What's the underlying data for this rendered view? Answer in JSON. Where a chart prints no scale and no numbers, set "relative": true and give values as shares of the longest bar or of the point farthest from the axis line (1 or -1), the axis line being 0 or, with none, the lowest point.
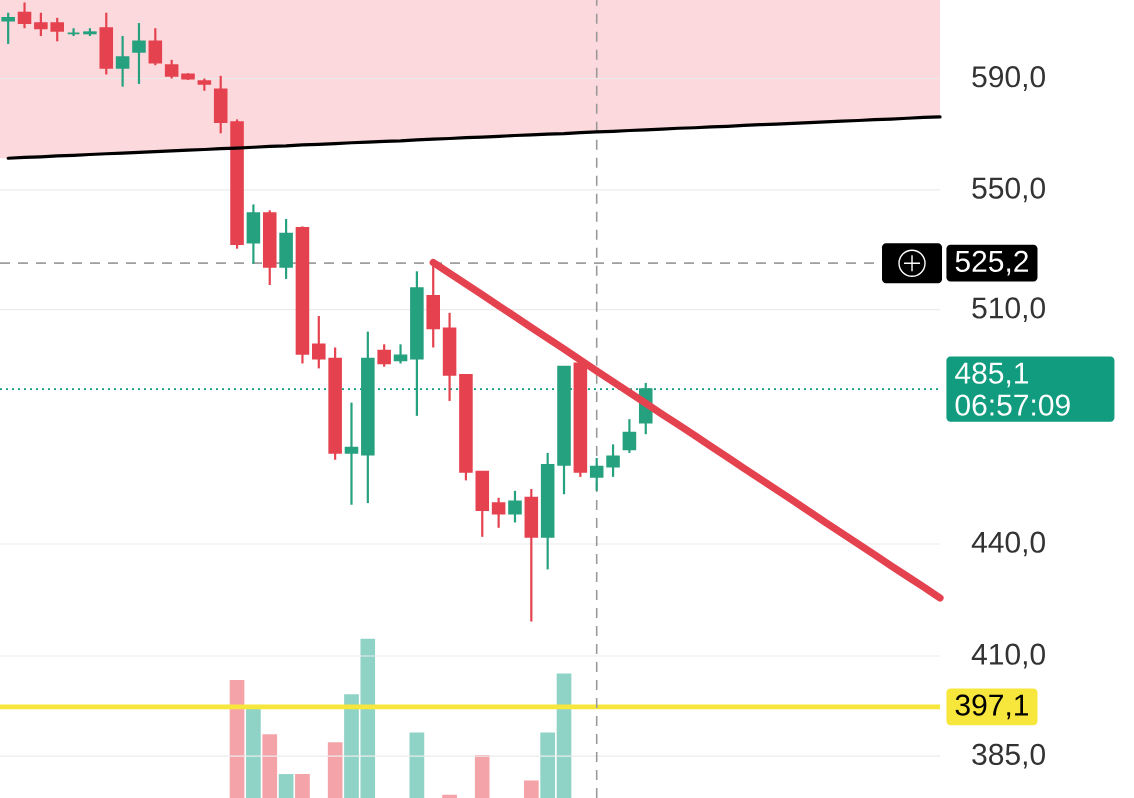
{
  "chart_data": [
    {
      "type": "candlestick",
      "log": true,
      "grid": "y",
      "tick_labels": "y",
      "categories": [
        null,
        null,
        null,
        null,
        null,
        null,
        null,
        null,
        null,
        null,
        null,
        null,
        null,
        null,
        null,
        null,
        null,
        null,
        null,
        null,
        null,
        null,
        null,
        null,
        null,
        null,
        null,
        null,
        null,
        null,
        null,
        null,
        null,
        null,
        null,
        null,
        null,
        null,
        null,
        null,
        null,
        null,
        null,
        null,
        null,
        null,
        null,
        null,
        null,
        null,
        null,
        null,
        null,
        null,
        null,
        null,
        null,
        null
      ],
      "ylim": [
        375,
        620
      ],
      "yticks": [
        {
          "value": 385,
          "label": "385,0"
        },
        {
          "value": 410,
          "label": "410,0"
        },
        {
          "value": 440,
          "label": "440,0"
        },
        {
          "value": 510,
          "label": "510,0"
        },
        {
          "value": 550,
          "label": "550,0"
        },
        {
          "value": 590,
          "label": "590,0"
        }
      ],
      "ohlc": [
        [
          612,
          615,
          603,
          613
        ],
        [
          615,
          619,
          609,
          611
        ],
        [
          611,
          615,
          606,
          609
        ],
        [
          611,
          613,
          604,
          608
        ],
        [
          607,
          609,
          606,
          607
        ],
        [
          607,
          609,
          606,
          607.5
        ],
        [
          609,
          615,
          591.5,
          594
        ],
        [
          594,
          606,
          587,
          598
        ],
        [
          600,
          611,
          588,
          604
        ],
        [
          604,
          609,
          595,
          596
        ],
        [
          595,
          597,
          590,
          591
        ],
        [
          591.5,
          592,
          589.5,
          590
        ],
        [
          589,
          590,
          585.5,
          588
        ],
        [
          586,
          591,
          570,
          574
        ],
        [
          574,
          575,
          530,
          531.5
        ],
        [
          532,
          545,
          525,
          542
        ],
        [
          542,
          543,
          518,
          524
        ],
        [
          524,
          540,
          520,
          535
        ],
        [
          537,
          537.5,
          493,
          496
        ],
        [
          499,
          508,
          491.5,
          494.5
        ],
        [
          494.5,
          498,
          464,
          466
        ],
        [
          466,
          481,
          451,
          467.5
        ],
        [
          465.5,
          503,
          451.5,
          494.5
        ],
        [
          497,
          499,
          492,
          493
        ],
        [
          494,
          499,
          493,
          495.5
        ],
        [
          494.5,
          522.5,
          477,
          517
        ],
        [
          514.5,
          524.5,
          498,
          504
        ],
        [
          504,
          509,
          481.5,
          489.5
        ],
        [
          489.5,
          489.5,
          458,
          460.5
        ],
        [
          460.5,
          460.5,
          442,
          449.5
        ],
        [
          451.5,
          453,
          444.5,
          448.5
        ],
        [
          448.5,
          455,
          446,
          452
        ],
        [
          453,
          455.5,
          419,
          442
        ],
        [
          442,
          466,
          433,
          462.5
        ],
        [
          462.5,
          492,
          454,
          492
        ],
        [
          493,
          494.5,
          459,
          460.5
        ],
        [
          459,
          464.5,
          455,
          462
        ],
        [
          462,
          468.5,
          459,
          465
        ],
        [
          467,
          476,
          466,
          472
        ],
        [
          475,
          487,
          471.5,
          485.1
        ],
        null,
        null,
        null,
        null,
        null,
        null,
        null,
        null,
        null,
        null,
        null,
        null,
        null,
        null,
        null,
        null,
        null,
        null
      ],
      "colors": [
        "#26a17f",
        "#e5424f",
        "#e5424f",
        "#e5424f",
        "#26a17f",
        "#26a17f",
        "#e5424f",
        "#26a17f",
        "#26a17f",
        "#e5424f",
        "#e5424f",
        "#e5424f",
        "#e5424f",
        "#e5424f",
        "#e5424f",
        "#26a17f",
        "#e5424f",
        "#26a17f",
        "#e5424f",
        "#e5424f",
        "#e5424f",
        "#26a17f",
        "#26a17f",
        "#e5424f",
        "#26a17f",
        "#26a17f",
        "#e5424f",
        "#e5424f",
        "#e5424f",
        "#e5424f",
        "#e5424f",
        "#26a17f",
        "#e5424f",
        "#26a17f",
        "#26a17f",
        "#e5424f",
        "#26a17f",
        "#26a17f",
        "#26a17f",
        "#26a17f",
        null,
        null,
        null,
        null,
        null,
        null,
        null,
        null,
        null,
        null,
        null,
        null,
        null,
        null,
        null,
        null,
        null,
        null
      ],
      "series": [
        {
          "type": "line",
          "color": "#000000",
          "values": [
            561.1,
            561.4,
            561.6,
            561.9,
            562.1,
            562.4,
            562.7,
            562.9,
            563.2,
            563.4,
            563.7,
            564.0,
            564.2,
            564.5,
            564.7,
            565.0,
            565.3,
            565.5,
            565.8,
            566.0,
            566.3,
            566.6,
            566.8,
            567.1,
            567.3,
            567.6,
            567.9,
            568.1,
            568.4,
            568.6,
            568.9,
            569.2,
            569.4,
            569.7,
            569.9,
            570.2,
            570.5,
            570.7,
            571.0,
            571.2,
            571.5,
            571.8,
            572.0,
            572.3,
            572.5,
            572.8,
            573.1,
            573.3,
            573.6,
            573.8,
            574.1,
            574.4,
            574.6,
            574.9,
            575.1,
            575.4,
            575.7,
            575.9
          ]
        },
        {
          "type": "line",
          "color": "#e5424f",
          "values": [
            null,
            null,
            null,
            null,
            null,
            null,
            null,
            null,
            null,
            null,
            null,
            null,
            null,
            null,
            null,
            null,
            null,
            null,
            null,
            null,
            null,
            null,
            null,
            null,
            null,
            null,
            525.4,
            521.8,
            518.3,
            514.8,
            511.3,
            507.8,
            504.3,
            500.9,
            497.5,
            494.1,
            490.7,
            487.4,
            484.1,
            480.8,
            477.5,
            474.3,
            471.1,
            467.9,
            464.7,
            461.5,
            458.4,
            455.3,
            452.2,
            449.1,
            446.0,
            443.0,
            440.0,
            437.0,
            434.0,
            431.1,
            428.2,
            425.3
          ]
        }
      ],
      "ref_lines": [
        {
          "axis": "y",
          "value": 525.2,
          "label": "525,2",
          "color": "#9e9e9e",
          "line_style": "dashed"
        },
        {
          "axis": "y",
          "value": 485.1,
          "label": "485,1",
          "color": "#119c7f",
          "line_style": "dotted"
        },
        {
          "axis": "y",
          "value": 397.1,
          "label": "397,1",
          "color": "#f7e63c",
          "line_style": "solid"
        }
      ],
      "annotations": [
        "06:57:09"
      ]
    },
    {
      "type": "bar",
      "relative": true,
      "categories": [
        null,
        null,
        null,
        null,
        null,
        null,
        null,
        null,
        null,
        null,
        null,
        null,
        null,
        null,
        null,
        null,
        null,
        null,
        null,
        null,
        null,
        null,
        null,
        null,
        null,
        null,
        null,
        null,
        null,
        null,
        null,
        null,
        null,
        null,
        null,
        null,
        null,
        null,
        null,
        null,
        null,
        null,
        null,
        null,
        null,
        null,
        null,
        null,
        null,
        null,
        null,
        null,
        null,
        null,
        null,
        null,
        null,
        null
      ],
      "values": [
        null,
        null,
        null,
        null,
        null,
        null,
        null,
        null,
        null,
        null,
        null,
        null,
        null,
        null,
        0.74,
        0.58,
        0.4,
        0.15,
        0.15,
        null,
        0.35,
        0.65,
        1,
        null,
        null,
        0.41,
        null,
        0.02,
        null,
        0.27,
        null,
        null,
        0.11,
        0.41,
        0.78,
        null,
        null,
        null,
        null,
        null,
        null,
        null,
        null,
        null,
        null,
        null,
        null,
        null,
        null,
        null,
        null,
        null,
        null,
        null,
        null,
        null,
        null,
        null
      ],
      "colors": [
        null,
        null,
        null,
        null,
        null,
        null,
        null,
        null,
        null,
        null,
        null,
        null,
        null,
        null,
        "#f4a3a8",
        "#8fd3c7",
        "#f4a3a8",
        "#8fd3c7",
        "#f4a3a8",
        null,
        "#f4a3a8",
        "#8fd3c7",
        "#8fd3c7",
        null,
        null,
        "#8fd3c7",
        null,
        "#f4a3a8",
        null,
        "#f4a3a8",
        null,
        null,
        "#f4a3a8",
        "#8fd3c7",
        "#8fd3c7",
        null,
        null,
        null,
        null,
        null,
        null,
        null,
        null,
        null,
        null,
        null,
        null,
        null,
        null,
        null,
        null,
        null,
        null,
        null,
        null,
        null,
        null,
        null
      ]
    }
  ]
}
